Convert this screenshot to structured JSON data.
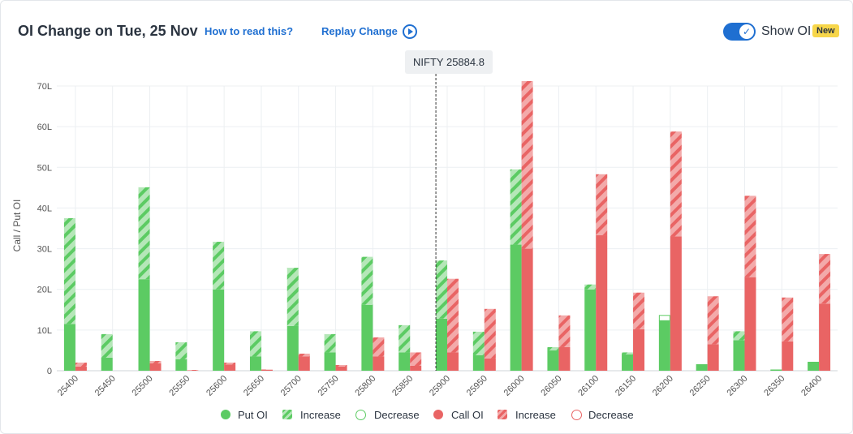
{
  "header": {
    "title": "OI Change on Tue, 25 Nov",
    "how_to_read": "How to read this?",
    "replay": "Replay Change",
    "show_oi": "Show OI",
    "new_badge": "New"
  },
  "spot_label": "NIFTY 25884.8",
  "colors": {
    "put": "#5ccb63",
    "put_light": "#b5e7b8",
    "call": "#e96464",
    "call_light": "#f3aaaa",
    "accent": "#1f6fd1"
  },
  "legend": [
    {
      "label": "Put OI",
      "style": "put-solid"
    },
    {
      "label": "Increase",
      "style": "put-increase"
    },
    {
      "label": "Decrease",
      "style": "put-decrease"
    },
    {
      "label": "Call OI",
      "style": "call-solid"
    },
    {
      "label": "Increase",
      "style": "call-increase"
    },
    {
      "label": "Decrease",
      "style": "call-decrease"
    }
  ],
  "chart_data": {
    "type": "bar",
    "ylabel": "Call / Put OI",
    "ylim": [
      0,
      70
    ],
    "yticks": [
      "0",
      "10L",
      "20L",
      "30L",
      "40L",
      "50L",
      "60L",
      "70L"
    ],
    "spot": 25884.8,
    "categories": [
      "25400",
      "25450",
      "25500",
      "25550",
      "25600",
      "25650",
      "25700",
      "25750",
      "25800",
      "25850",
      "25900",
      "25950",
      "26000",
      "26050",
      "26100",
      "26150",
      "26200",
      "26250",
      "26300",
      "26350",
      "26400"
    ],
    "series": [
      {
        "name": "Put OI",
        "base": [
          11.5,
          3.2,
          22.5,
          2.8,
          20.0,
          3.5,
          11.0,
          4.5,
          16.2,
          4.5,
          12.8,
          3.8,
          31.0,
          5.0,
          20.0,
          4.0,
          12.3,
          1.6,
          7.5,
          0.3,
          2.2
        ],
        "increase": [
          26.0,
          5.8,
          22.6,
          4.2,
          11.7,
          6.2,
          14.3,
          4.5,
          11.8,
          6.7,
          14.3,
          5.8,
          18.5,
          0.8,
          1.2,
          0.5,
          0.0,
          0.0,
          2.2,
          0.0,
          0.0
        ],
        "decrease": [
          0,
          0,
          0,
          0,
          0,
          0,
          0,
          0,
          0,
          0,
          0,
          0,
          0,
          0,
          0,
          0,
          1.3,
          0,
          0,
          0,
          0
        ]
      },
      {
        "name": "Call OI",
        "base": [
          1.0,
          0.0,
          1.8,
          0.0,
          1.5,
          0.2,
          3.5,
          1.0,
          3.5,
          1.2,
          4.5,
          3.0,
          30.0,
          5.8,
          33.3,
          10.2,
          33.0,
          6.5,
          23.0,
          7.2,
          16.5
        ],
        "increase": [
          1.0,
          0.0,
          0.6,
          0.2,
          0.5,
          0.1,
          0.7,
          0.4,
          4.7,
          3.3,
          18.1,
          12.2,
          41.2,
          7.8,
          15.0,
          9.0,
          25.8,
          11.8,
          20.0,
          10.8,
          12.2
        ],
        "decrease": [
          0,
          0,
          0,
          0,
          0,
          0,
          0,
          0,
          0,
          0,
          0,
          0,
          0,
          0,
          0,
          0,
          0,
          0,
          0,
          0,
          0
        ]
      }
    ]
  }
}
